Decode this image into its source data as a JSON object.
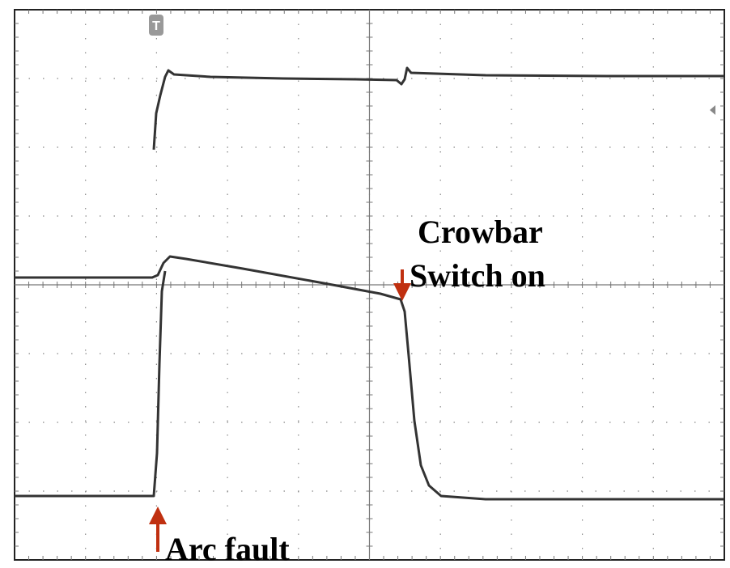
{
  "annotations": {
    "crowbar_line1": "Crowbar",
    "crowbar_line2": "Switch on",
    "arc": "Arc fault"
  }
}
